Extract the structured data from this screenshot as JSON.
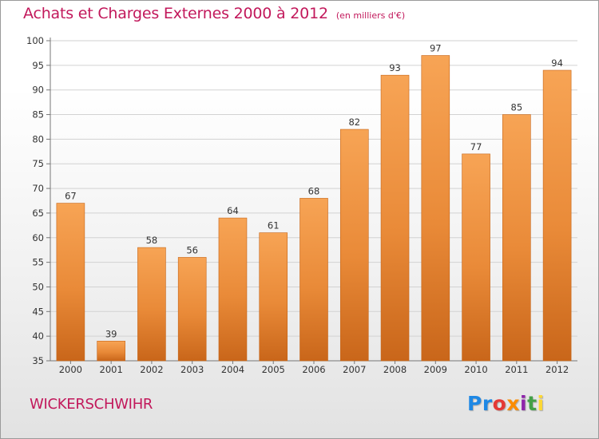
{
  "header": {
    "title": "Achats et Charges Externes 2000 à 2012",
    "subtitle": "(en milliers d'€)"
  },
  "footer": {
    "location": "WICKERSCHWIHR",
    "logo_parts": [
      "Pr",
      "o",
      "x",
      "i",
      "t",
      "i"
    ]
  },
  "colors": {
    "accent": "#c2185b",
    "bar_top": "#f7a455",
    "bar_bottom": "#c9661a"
  },
  "chart_data": {
    "type": "bar",
    "title": "Achats et Charges Externes 2000 à 2012",
    "subtitle": "(en milliers d'€)",
    "categories": [
      "2000",
      "2001",
      "2002",
      "2003",
      "2004",
      "2005",
      "2006",
      "2007",
      "2008",
      "2009",
      "2010",
      "2011",
      "2012"
    ],
    "values": [
      67,
      39,
      58,
      56,
      64,
      61,
      68,
      82,
      93,
      97,
      77,
      85,
      94
    ],
    "ylim": [
      35,
      100
    ],
    "yticks": [
      35,
      40,
      45,
      50,
      55,
      60,
      65,
      70,
      75,
      80,
      85,
      90,
      95,
      100
    ],
    "grid": "horizontal",
    "legend": "none",
    "xlabel": "",
    "ylabel": ""
  }
}
